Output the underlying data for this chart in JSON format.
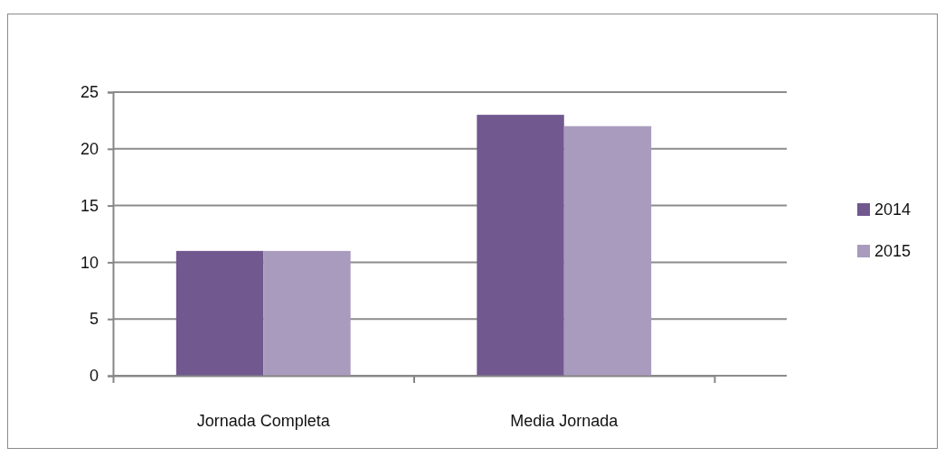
{
  "chart_data": {
    "type": "bar",
    "categories": [
      "Jornada Completa",
      "Media Jornada"
    ],
    "series": [
      {
        "name": "2014",
        "color": "#71588f",
        "values": [
          11,
          23
        ]
      },
      {
        "name": "2015",
        "color": "#a99bbd",
        "values": [
          11,
          22
        ]
      }
    ],
    "ylim": [
      0,
      25
    ],
    "yticks": [
      0,
      5,
      10,
      15,
      20,
      25
    ],
    "grid": "y",
    "legend": "right"
  }
}
